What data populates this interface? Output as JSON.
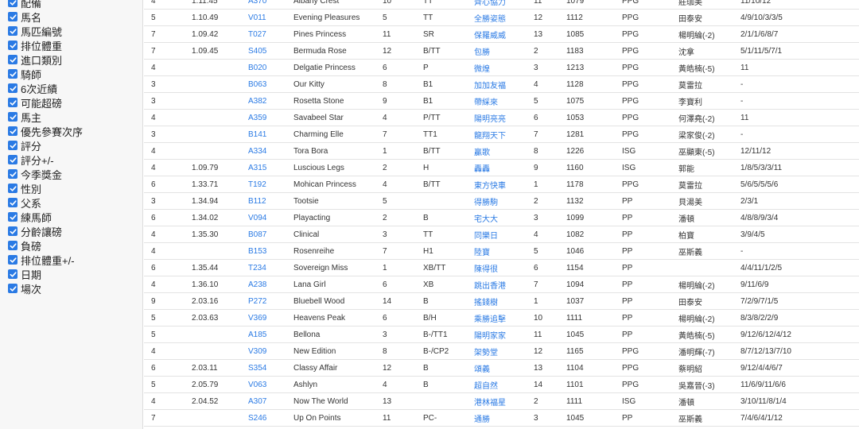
{
  "columns": [
    {
      "label": "配備",
      "checked": true
    },
    {
      "label": "馬名",
      "checked": true
    },
    {
      "label": "馬匹編號",
      "checked": true
    },
    {
      "label": "排位體重",
      "checked": true
    },
    {
      "label": "進口類別",
      "checked": true
    },
    {
      "label": "騎師",
      "checked": true
    },
    {
      "label": "6次近績",
      "checked": true
    },
    {
      "label": "可能超磅",
      "checked": true
    },
    {
      "label": "馬主",
      "checked": true
    },
    {
      "label": "優先參賽次序",
      "checked": true
    },
    {
      "label": "評分",
      "checked": true
    },
    {
      "label": "評分+/-",
      "checked": true
    },
    {
      "label": "今季獎金",
      "checked": true
    },
    {
      "label": "性別",
      "checked": true
    },
    {
      "label": "父系",
      "checked": true
    },
    {
      "label": "練馬師",
      "checked": true
    },
    {
      "label": "分齡讓磅",
      "checked": true
    },
    {
      "label": "負磅",
      "checked": true
    },
    {
      "label": "排位體重+/-",
      "checked": true
    },
    {
      "label": "日期",
      "checked": true
    },
    {
      "label": "場次",
      "checked": true
    }
  ],
  "rows": [
    {
      "a": "4",
      "b": "1.11.45",
      "c": "A370",
      "d": "Albany Crest",
      "e": "10",
      "f": "TT",
      "g": "齊心協力",
      "h": "11",
      "i": "1079",
      "j": "PPG",
      "k": "莊珈美",
      "l": "11/10/12"
    },
    {
      "a": "5",
      "b": "1.10.49",
      "c": "V011",
      "d": "Evening Pleasures",
      "e": "5",
      "f": "TT",
      "g": "全勝姿態",
      "h": "12",
      "i": "1112",
      "j": "PPG",
      "k": "田泰安",
      "l": "4/9/10/3/3/5"
    },
    {
      "a": "7",
      "b": "1.09.42",
      "c": "T027",
      "d": "Pines Princess",
      "e": "11",
      "f": "SR",
      "g": "保羅威威",
      "h": "13",
      "i": "1085",
      "j": "PPG",
      "k": "楊明綸(-2)",
      "l": "2/1/1/6/8/7"
    },
    {
      "a": "7",
      "b": "1.09.45",
      "c": "S405",
      "d": "Bermuda Rose",
      "e": "12",
      "f": "B/TT",
      "g": "包勝",
      "h": "2",
      "i": "1183",
      "j": "PPG",
      "k": "沈拿",
      "l": "5/1/11/5/7/1"
    },
    {
      "a": "4",
      "b": "",
      "c": "B020",
      "d": "Delgatie Princess",
      "e": "6",
      "f": "P",
      "g": "微煌",
      "h": "3",
      "i": "1213",
      "j": "PPG",
      "k": "黃皓楠(-5)",
      "l": "11"
    },
    {
      "a": "3",
      "b": "",
      "c": "B063",
      "d": "Our Kitty",
      "e": "8",
      "f": "B1",
      "g": "加加友福",
      "h": "4",
      "i": "1128",
      "j": "PPG",
      "k": "莫雷拉",
      "l": "-"
    },
    {
      "a": "3",
      "b": "",
      "c": "A382",
      "d": "Rosetta Stone",
      "e": "9",
      "f": "B1",
      "g": "帶綵來",
      "h": "5",
      "i": "1075",
      "j": "PPG",
      "k": "李寶利",
      "l": "-"
    },
    {
      "a": "4",
      "b": "",
      "c": "A359",
      "d": "Savabeel Star",
      "e": "4",
      "f": "P/TT",
      "g": "陽明亮亮",
      "h": "6",
      "i": "1053",
      "j": "PPG",
      "k": "何澤堯(-2)",
      "l": "11"
    },
    {
      "a": "3",
      "b": "",
      "c": "B141",
      "d": "Charming Elle",
      "e": "7",
      "f": "TT1",
      "g": "龍翔天下",
      "h": "7",
      "i": "1281",
      "j": "PPG",
      "k": "梁家俊(-2)",
      "l": "-"
    },
    {
      "a": "4",
      "b": "",
      "c": "A334",
      "d": "Tora Bora",
      "e": "1",
      "f": "B/TT",
      "g": "贏歌",
      "h": "8",
      "i": "1226",
      "j": "ISG",
      "k": "巫顯東(-5)",
      "l": "12/11/12"
    },
    {
      "a": "4",
      "b": "1.09.79",
      "c": "A315",
      "d": "Luscious Legs",
      "e": "2",
      "f": "H",
      "g": "轟轟",
      "h": "9",
      "i": "1160",
      "j": "ISG",
      "k": "郭能",
      "l": "1/8/5/3/3/11"
    },
    {
      "a": "6",
      "b": "1.33.71",
      "c": "T192",
      "d": "Mohican Princess",
      "e": "4",
      "f": "B/TT",
      "g": "東方快車",
      "h": "1",
      "i": "1178",
      "j": "PPG",
      "k": "莫雷拉",
      "l": "5/6/5/5/5/6"
    },
    {
      "a": "3",
      "b": "1.34.94",
      "c": "B112",
      "d": "Tootsie",
      "e": "5",
      "f": "",
      "g": "得勝駒",
      "h": "2",
      "i": "1132",
      "j": "PP",
      "k": "貝湯美",
      "l": "2/3/1"
    },
    {
      "a": "6",
      "b": "1.34.02",
      "c": "V094",
      "d": "Playacting",
      "e": "2",
      "f": "B",
      "g": "宅大大",
      "h": "3",
      "i": "1099",
      "j": "PP",
      "k": "潘頓",
      "l": "4/8/8/9/3/4"
    },
    {
      "a": "4",
      "b": "1.35.30",
      "c": "B087",
      "d": "Clinical",
      "e": "3",
      "f": "TT",
      "g": "同樂日",
      "h": "4",
      "i": "1082",
      "j": "PP",
      "k": "柏寶",
      "l": "3/9/4/5"
    },
    {
      "a": "4",
      "b": "",
      "c": "B153",
      "d": "Rosenreihe",
      "e": "7",
      "f": "H1",
      "g": "陸寶",
      "h": "5",
      "i": "1046",
      "j": "PP",
      "k": "巫斯義",
      "l": "-"
    },
    {
      "a": "6",
      "b": "1.35.44",
      "c": "T234",
      "d": "Sovereign Miss",
      "e": "1",
      "f": "XB/TT",
      "g": "陳得很",
      "h": "6",
      "i": "1154",
      "j": "PP",
      "k": "",
      "l": "4/4/11/1/2/5"
    },
    {
      "a": "4",
      "b": "1.36.10",
      "c": "A238",
      "d": "Lana Girl",
      "e": "6",
      "f": "XB",
      "g": "跳出香港",
      "h": "7",
      "i": "1094",
      "j": "PP",
      "k": "楊明綸(-2)",
      "l": "9/11/6/9"
    },
    {
      "a": "9",
      "b": "2.03.16",
      "c": "P272",
      "d": "Bluebell Wood",
      "e": "14",
      "f": "B",
      "g": "搖錢樹",
      "h": "1",
      "i": "1037",
      "j": "PP",
      "k": "田泰安",
      "l": "7/2/9/7/1/5"
    },
    {
      "a": "5",
      "b": "2.03.63",
      "c": "V369",
      "d": "Heavens Peak",
      "e": "6",
      "f": "B/H",
      "g": "乘勝追擊",
      "h": "10",
      "i": "1111",
      "j": "PP",
      "k": "楊明綸(-2)",
      "l": "8/3/8/2/2/9"
    },
    {
      "a": "5",
      "b": "",
      "c": "A185",
      "d": "Bellona",
      "e": "3",
      "f": "B-/TT1",
      "g": "陽明家家",
      "h": "11",
      "i": "1045",
      "j": "PP",
      "k": "黃皓楠(-5)",
      "l": "9/12/6/12/4/12"
    },
    {
      "a": "4",
      "b": "",
      "c": "V309",
      "d": "New Edition",
      "e": "8",
      "f": "B-/CP2",
      "g": "架勢堂",
      "h": "12",
      "i": "1165",
      "j": "PPG",
      "k": "潘明輝(-7)",
      "l": "8/7/12/13/7/10"
    },
    {
      "a": "6",
      "b": "2.03.11",
      "c": "S354",
      "d": "Classy Affair",
      "e": "12",
      "f": "B",
      "g": "頌義",
      "h": "13",
      "i": "1104",
      "j": "PPG",
      "k": "蔡明紹",
      "l": "9/12/4/4/6/7"
    },
    {
      "a": "5",
      "b": "2.05.79",
      "c": "V063",
      "d": "Ashlyn",
      "e": "4",
      "f": "B",
      "g": "超自然",
      "h": "14",
      "i": "1101",
      "j": "PPG",
      "k": "吳嘉晉(-3)",
      "l": "11/6/9/11/6/6"
    },
    {
      "a": "4",
      "b": "2.04.52",
      "c": "A307",
      "d": "Now The World",
      "e": "13",
      "f": "",
      "g": "港林福星",
      "h": "2",
      "i": "1111",
      "j": "ISG",
      "k": "潘頓",
      "l": "3/10/11/8/1/4"
    },
    {
      "a": "7",
      "b": "",
      "c": "S246",
      "d": "Up On Points",
      "e": "11",
      "f": "PC-",
      "g": "通勝",
      "h": "3",
      "i": "1045",
      "j": "PP",
      "k": "巫斯義",
      "l": "7/4/6/4/1/12"
    }
  ]
}
